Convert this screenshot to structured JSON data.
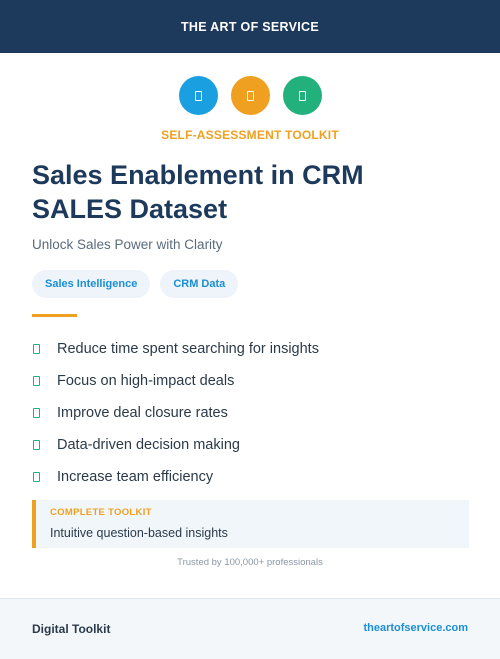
{
  "header": {
    "title": "THE ART OF SERVICE"
  },
  "icons": [
    {
      "name": "doc-icon",
      "color": "#1a9fe0"
    },
    {
      "name": "doc-icon",
      "color": "#f0a020"
    },
    {
      "name": "doc-icon",
      "color": "#22b07d"
    }
  ],
  "kicker": "SELF-ASSESSMENT TOOLKIT",
  "title": {
    "line1": "Sales Enablement in CRM",
    "line2": "SALES Dataset"
  },
  "subtitle": "Unlock Sales Power with Clarity",
  "tags": [
    "Sales Intelligence",
    "CRM Data"
  ],
  "benefits": [
    "Reduce time spent searching for insights",
    "Focus on high-impact deals",
    "Improve deal closure rates",
    "Data-driven decision making",
    "Increase team efficiency"
  ],
  "callout": {
    "label": "COMPLETE TOOLKIT",
    "text": "Intuitive question-based insights"
  },
  "trusted": "Trusted by 100,000+ professionals",
  "footer": {
    "left": "Digital Toolkit",
    "right": "theartofservice.com"
  }
}
